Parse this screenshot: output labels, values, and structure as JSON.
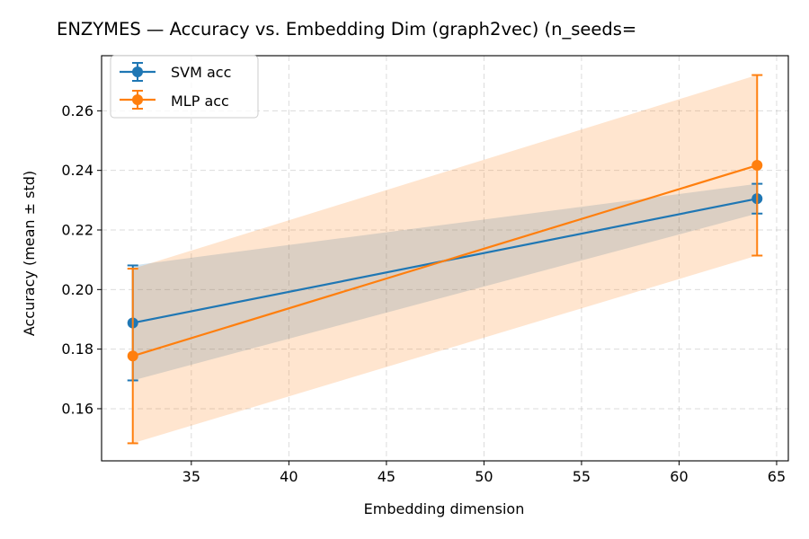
{
  "chart_data": {
    "type": "line",
    "title": "ENZYMES — Accuracy vs. Embedding Dim (graph2vec)  (n_seeds=",
    "xlabel": "Embedding dimension",
    "ylabel": "Accuracy (mean ± std)",
    "xlim": [
      30.4,
      65.6
    ],
    "ylim": [
      0.1425,
      0.2785
    ],
    "xticks": [
      35,
      40,
      45,
      50,
      55,
      60,
      65
    ],
    "yticks": [
      0.16,
      0.18,
      0.2,
      0.22,
      0.24,
      0.26
    ],
    "ytick_labels": [
      "0.16",
      "0.18",
      "0.20",
      "0.22",
      "0.24",
      "0.26"
    ],
    "grid": true,
    "legend_position": "top-left",
    "x": [
      32,
      64
    ],
    "series": [
      {
        "name": "SVM acc",
        "values": [
          0.1888,
          0.2305
        ],
        "std": [
          0.0193,
          0.005
        ],
        "color": "#1f77b4",
        "band_color": "#1f77b4"
      },
      {
        "name": "MLP acc",
        "values": [
          0.1777,
          0.2417
        ],
        "std": [
          0.0293,
          0.0303
        ],
        "color": "#ff7f0e",
        "band_color": "#ff7f0e"
      }
    ]
  }
}
